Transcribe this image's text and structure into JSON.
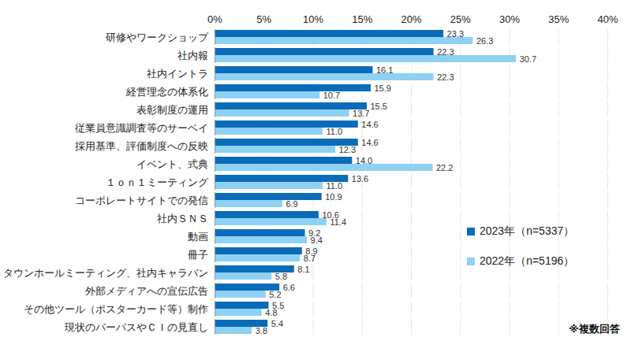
{
  "chart_data": {
    "type": "bar",
    "orientation": "horizontal",
    "categories": [
      "研修やワークショップ",
      "社内報",
      "社内イントラ",
      "経営理念の体系化",
      "表彰制度の運用",
      "従業員意識調査等のサーベイ",
      "採用基準、評価制度への反映",
      "イベント、式典",
      "１ｏｎ１ミーティング",
      "コーポレートサイトでの発信",
      "社内ＳＮＳ",
      "動画",
      "冊子",
      "タウンホールミーティング、社内キャラバン",
      "外部メディアへの宣伝広告",
      "その他ツール（ポスターカード等）制作",
      "現状のパーパスやＣＩの見直し"
    ],
    "series": [
      {
        "name": "2023年（n=5337）",
        "color": "#0a6cb8",
        "values": [
          23.3,
          22.3,
          16.1,
          15.9,
          15.5,
          14.6,
          14.6,
          14.0,
          13.6,
          10.9,
          10.6,
          9.2,
          8.9,
          8.1,
          6.6,
          5.5,
          5.4
        ],
        "value_labels": [
          "23.3",
          "22.3",
          "16.1",
          "15.9",
          "15.5",
          "14.6",
          "14.6",
          "14.0",
          "13.6",
          "10.9",
          "10.6",
          "9.2",
          "8.9",
          "8.1",
          "6.6",
          "5.5",
          "5.4"
        ]
      },
      {
        "name": "2022年（n=5196）",
        "color": "#8fd1f5",
        "values": [
          26.3,
          30.7,
          22.3,
          10.7,
          13.7,
          11.0,
          12.3,
          22.2,
          11.0,
          6.9,
          11.4,
          9.4,
          8.7,
          5.8,
          5.2,
          4.8,
          3.8
        ],
        "value_labels": [
          "26.3",
          "30.7",
          "22.3",
          "10.7",
          "13.7",
          "11.0",
          "12.3",
          "22.2",
          "11.0",
          "6.9",
          "11.4",
          "9.4",
          "8.7",
          "5.8",
          "5.2",
          "4.8",
          "3.8"
        ]
      }
    ],
    "xlim": [
      0,
      40
    ],
    "xticks": [
      {
        "value": 0,
        "label": "0%"
      },
      {
        "value": 5,
        "label": "5%"
      },
      {
        "value": 10,
        "label": "10%"
      },
      {
        "value": 15,
        "label": "15%"
      },
      {
        "value": 20,
        "label": "20%"
      },
      {
        "value": 25,
        "label": "25%"
      },
      {
        "value": 30,
        "label": "30%"
      },
      {
        "value": 35,
        "label": "35%"
      },
      {
        "value": 40,
        "label": "40%"
      }
    ],
    "grid": true,
    "data_labels": true,
    "legend": "right",
    "annotations": [
      "※複数回答"
    ]
  }
}
